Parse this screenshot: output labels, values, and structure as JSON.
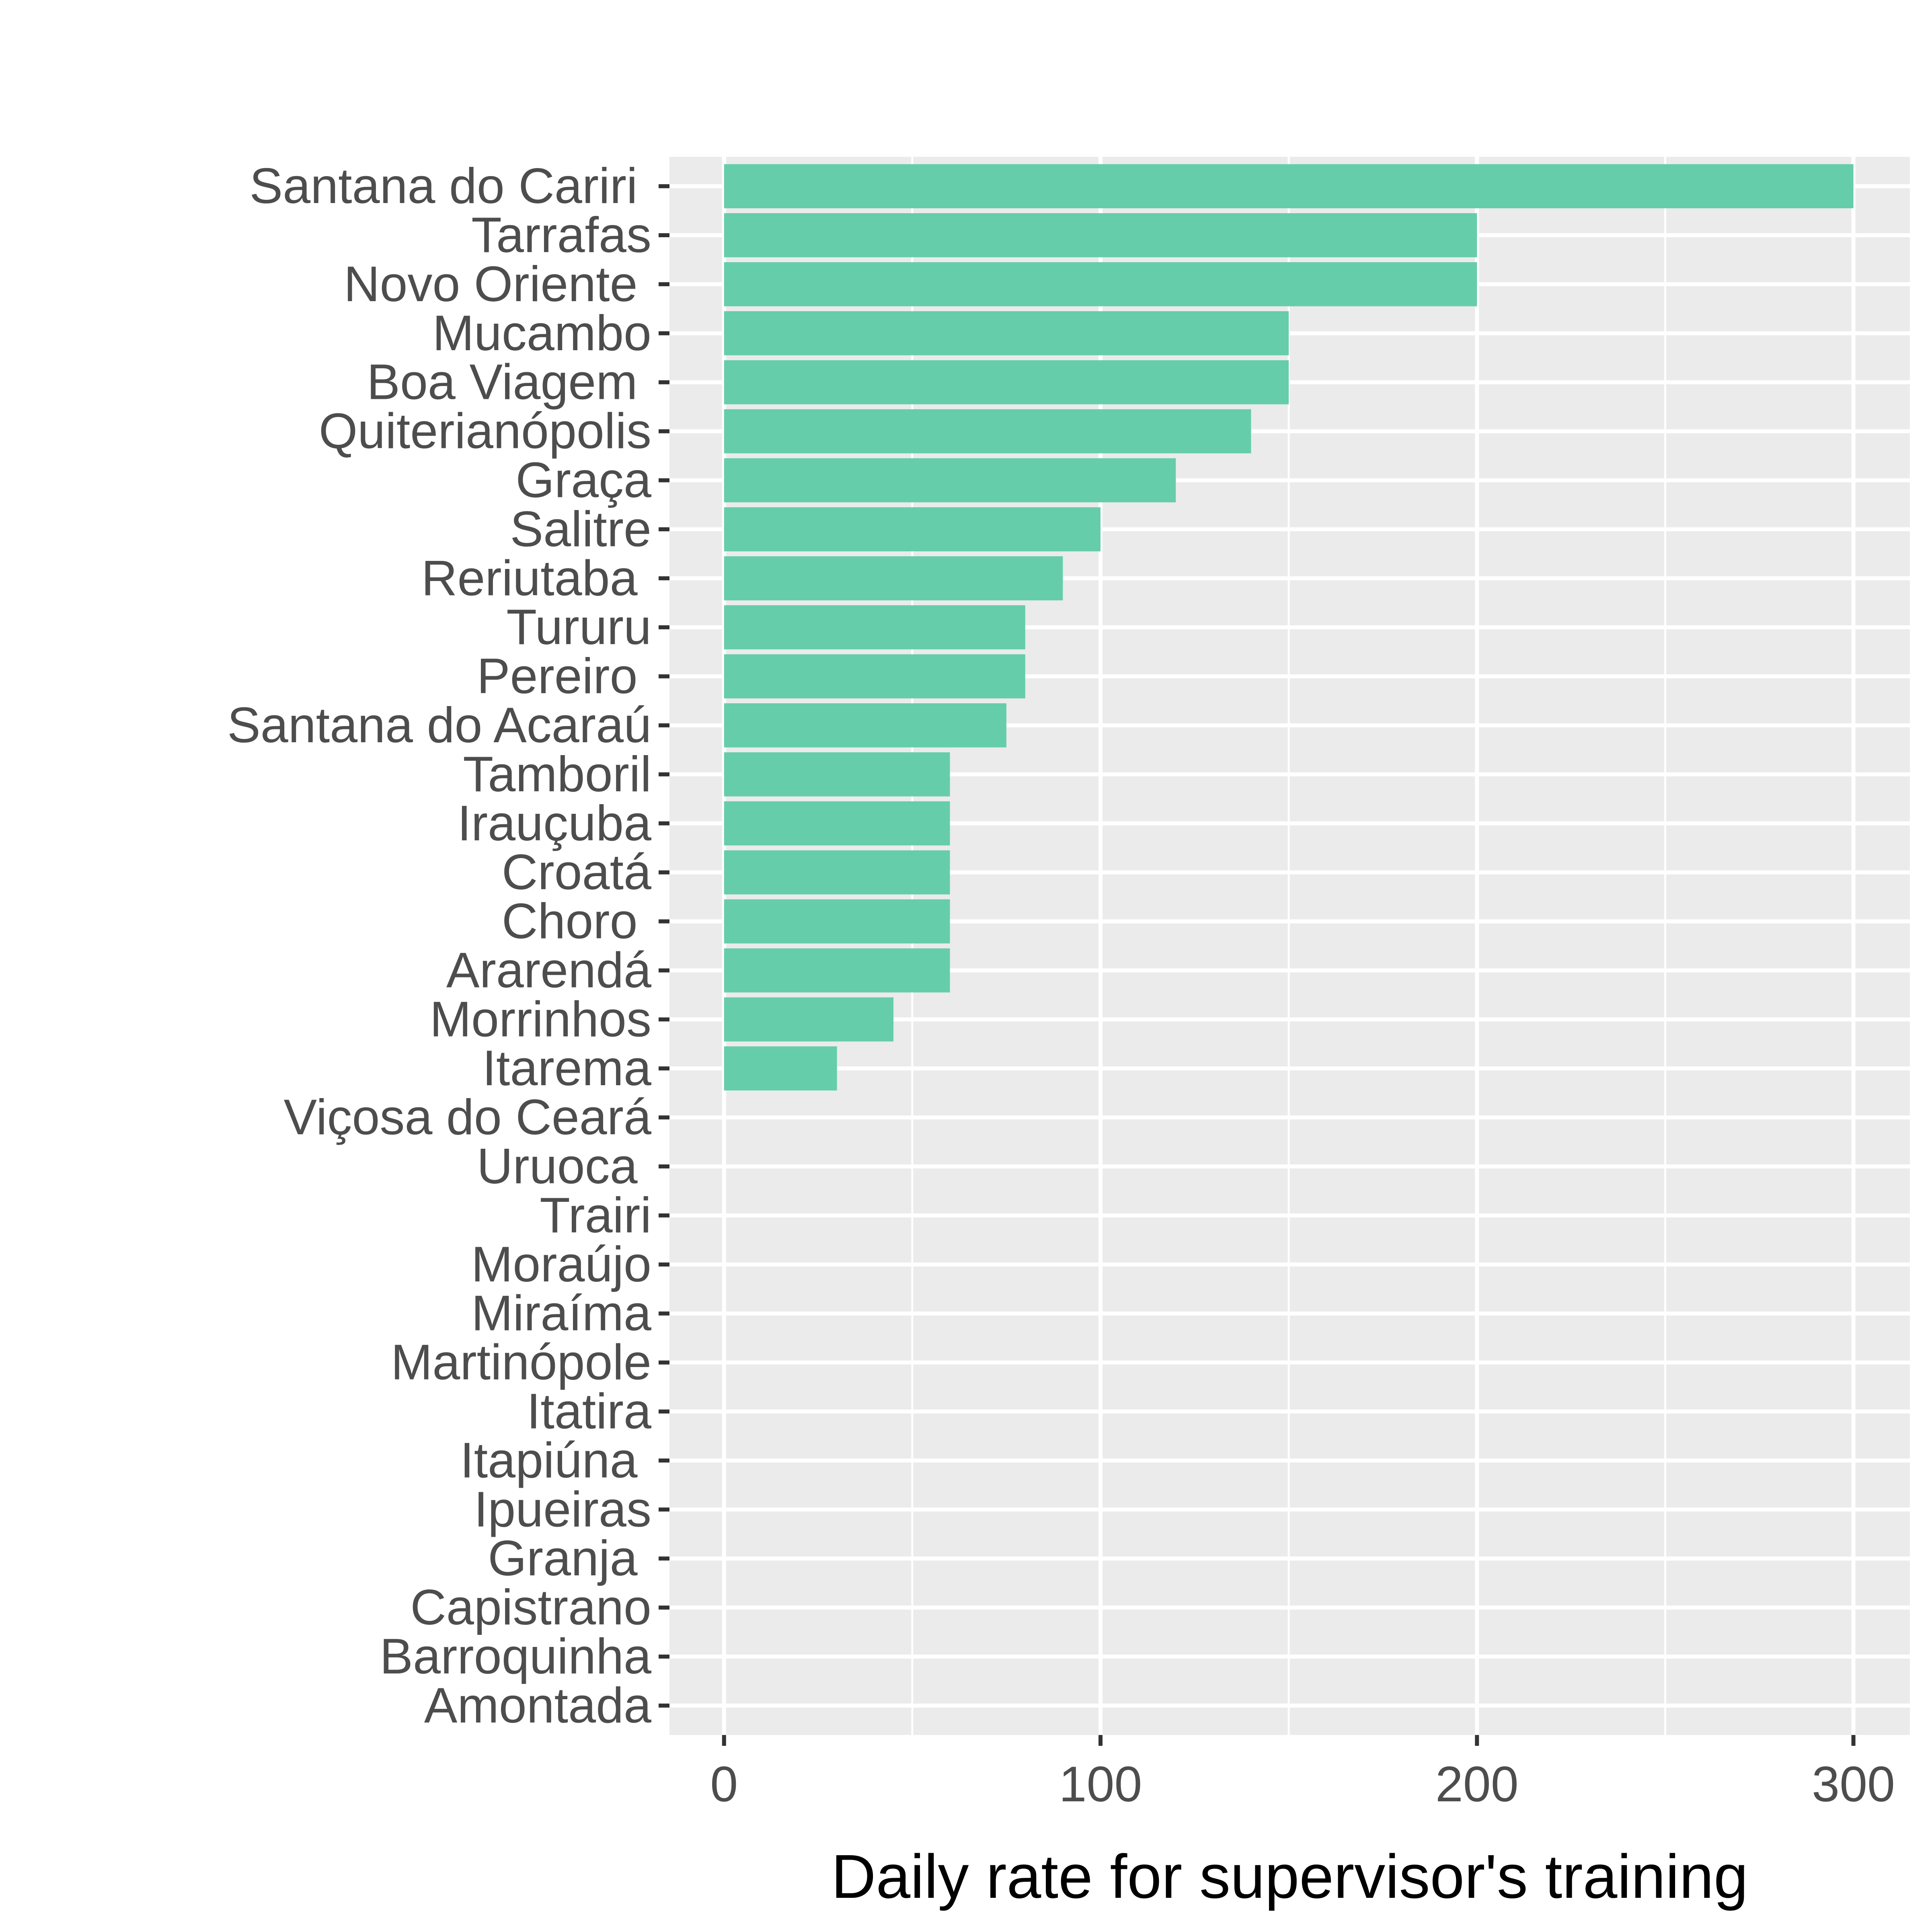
{
  "chart_data": {
    "type": "bar",
    "orientation": "horizontal",
    "categories": [
      "Santana do Cariri ",
      "Tarrafas",
      "Novo Oriente ",
      "Mucambo",
      "Boa Viagem ",
      "Quiterianópolis",
      "Graça",
      "Salitre",
      "Reriutaba ",
      "Tururu",
      "Pereiro ",
      "Santana do Acaraú",
      "Tamboril",
      "Irauçuba",
      "Croatá",
      "Choro ",
      "Ararendá",
      "Morrinhos",
      "Itarema",
      "Viçosa do Ceará",
      "Uruoca ",
      "Trairi",
      "Moraújo",
      "Miraíma",
      "Martinópole",
      "Itatira",
      "Itapiúna ",
      "Ipueiras",
      "Granja ",
      "Capistrano",
      "Barroquinha",
      "Amontada"
    ],
    "values": [
      300,
      200,
      200,
      150,
      150,
      140,
      120,
      100,
      90,
      80,
      80,
      75,
      60,
      60,
      60,
      60,
      60,
      45,
      30,
      0,
      0,
      0,
      0,
      0,
      0,
      0,
      0,
      0,
      0,
      0,
      0,
      0
    ],
    "title": "",
    "xlabel": "Daily rate for supervisor's training",
    "ylabel": "",
    "xlim": [
      -14.5,
      315
    ],
    "xticks": [
      0,
      100,
      200,
      300
    ],
    "xtick_labels": [
      "0",
      "100",
      "200",
      "300"
    ],
    "grid": true,
    "legend": "none",
    "colors": {
      "bar": "#66CDAA",
      "panel_background": "#EBEBEB",
      "grid": "#FFFFFF",
      "tick_label": "#4D4D4D",
      "tick_mark": "#333333",
      "axis_title": "#000000"
    }
  }
}
